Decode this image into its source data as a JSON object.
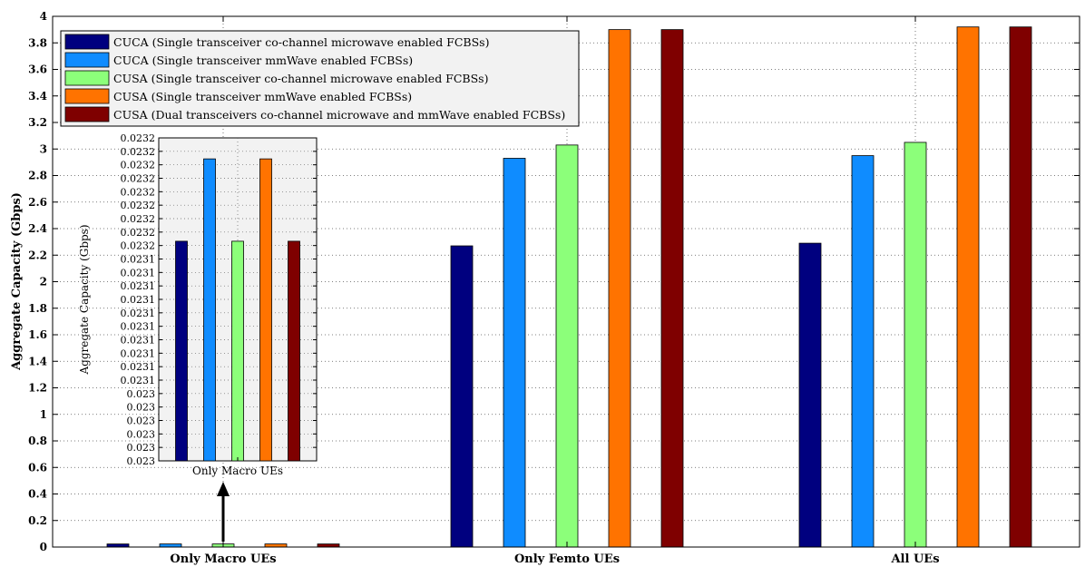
{
  "chart_data": {
    "type": "bar",
    "ylabel": "Aggregate Capacity (Gbps)",
    "ylim": [
      0,
      4
    ],
    "yticks": [
      "0",
      "0.2",
      "0.4",
      "0.6",
      "0.8",
      "1",
      "1.2",
      "1.4",
      "1.6",
      "1.8",
      "2",
      "2.2",
      "2.4",
      "2.6",
      "2.8",
      "3",
      "3.2",
      "3.4",
      "3.6",
      "3.8",
      "4"
    ],
    "grid": true,
    "legend_position": "top-left",
    "categories": [
      "Only Macro UEs",
      "Only Femto UEs",
      "All UEs"
    ],
    "series": [
      {
        "name": "CUCA (Single transceiver co-channel microwave enabled FCBSs)",
        "color": "#00007f",
        "values": [
          0.0231,
          2.27,
          2.29
        ]
      },
      {
        "name": "CUCA (Single transceiver mmWave enabled FCBSs)",
        "color": "#0f8cff",
        "values": [
          0.0232,
          2.93,
          2.95
        ]
      },
      {
        "name": "CUSA (Single transceiver co-channel microwave enabled FCBSs)",
        "color": "#8cff7a",
        "values": [
          0.0231,
          3.03,
          3.05
        ]
      },
      {
        "name": "CUSA (Single transceiver mmWave enabled FCBSs)",
        "color": "#ff7300",
        "values": [
          0.0232,
          3.9,
          3.92
        ]
      },
      {
        "name": "CUSA (Dual transceivers co-channel microwave and mmWave enabled FCBSs)",
        "color": "#7f0000",
        "values": [
          0.0231,
          3.9,
          3.92
        ]
      }
    ],
    "inset": {
      "type": "bar",
      "ylabel": "Aggregate Capacity (Gbps)",
      "xlabel": "Only Macro UEs",
      "yticks": [
        "0.023",
        "0.023",
        "0.023",
        "0.023",
        "0.023",
        "0.023",
        "0.0231",
        "0.0231",
        "0.0231",
        "0.0231",
        "0.0231",
        "0.0231",
        "0.0231",
        "0.0231",
        "0.0231",
        "0.0231",
        "0.0232",
        "0.0232",
        "0.0232",
        "0.0232",
        "0.0232",
        "0.0232",
        "0.0232",
        "0.0232",
        "0.0232"
      ],
      "ylim_fraction": [
        0,
        1
      ],
      "values_fraction": [
        0.68,
        0.935,
        0.68,
        0.935,
        0.68
      ]
    }
  }
}
